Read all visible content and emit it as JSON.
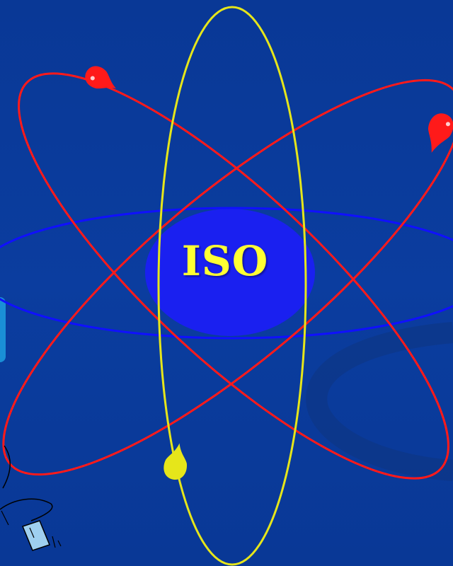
{
  "nucleus": {
    "label": "ISO"
  },
  "colors": {
    "background": "#0a3a9a",
    "nucleus": "#1a20f0",
    "orbit_horizontal": "#1010ff",
    "orbit_vertical": "#e6e61a",
    "orbit_diagonal": "#ff1a1a",
    "electron_red": "#ff1a1a",
    "electron_yellow": "#e6e61a",
    "label": "#ffff33",
    "side_tab": "#1a8fd6"
  },
  "icons": [
    "nucleus-ellipse",
    "electron-drop-red",
    "electron-drop-yellow",
    "mouse-clipart-icon",
    "side-tab"
  ]
}
